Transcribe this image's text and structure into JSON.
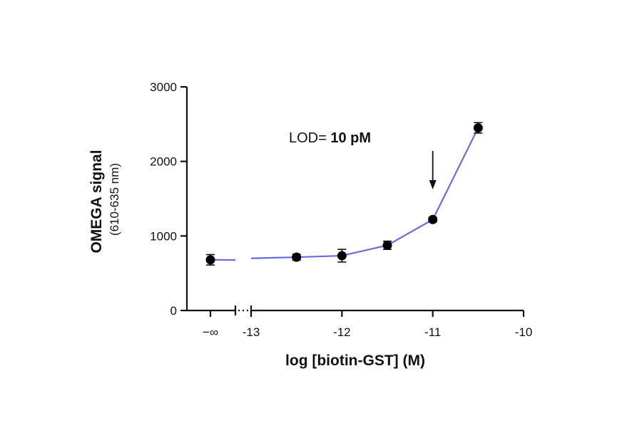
{
  "chart_data": {
    "type": "line",
    "xlabel": "log [biotin-GST] (M)",
    "ylabel": "OMEGA signal",
    "ylabel_sub": "(610-635 nm)",
    "xlim": [
      -13,
      -10
    ],
    "ylim": [
      0,
      3000
    ],
    "x_ticks": [
      -13,
      -12,
      -11,
      -10
    ],
    "x_tick_labels": [
      "-13",
      "-12",
      "-11",
      "-10"
    ],
    "y_ticks": [
      0,
      1000,
      2000,
      3000
    ],
    "y_tick_labels": [
      "0",
      "1000",
      "2000",
      "3000"
    ],
    "zero_label": "−∞",
    "zero_point": {
      "y": 680,
      "err": 70
    },
    "series": [
      {
        "x": [
          -12.5,
          -12,
          -11.5,
          -11,
          -10.5
        ],
        "y": [
          715,
          735,
          875,
          1220,
          2450
        ],
        "err": [
          40,
          85,
          55,
          30,
          70
        ]
      }
    ],
    "line_color": "#6a6be0",
    "point_color": "#000000",
    "grid": false,
    "annotation": {
      "prefix": "LOD= ",
      "value": "10 pM",
      "arrow_x": -11
    }
  }
}
